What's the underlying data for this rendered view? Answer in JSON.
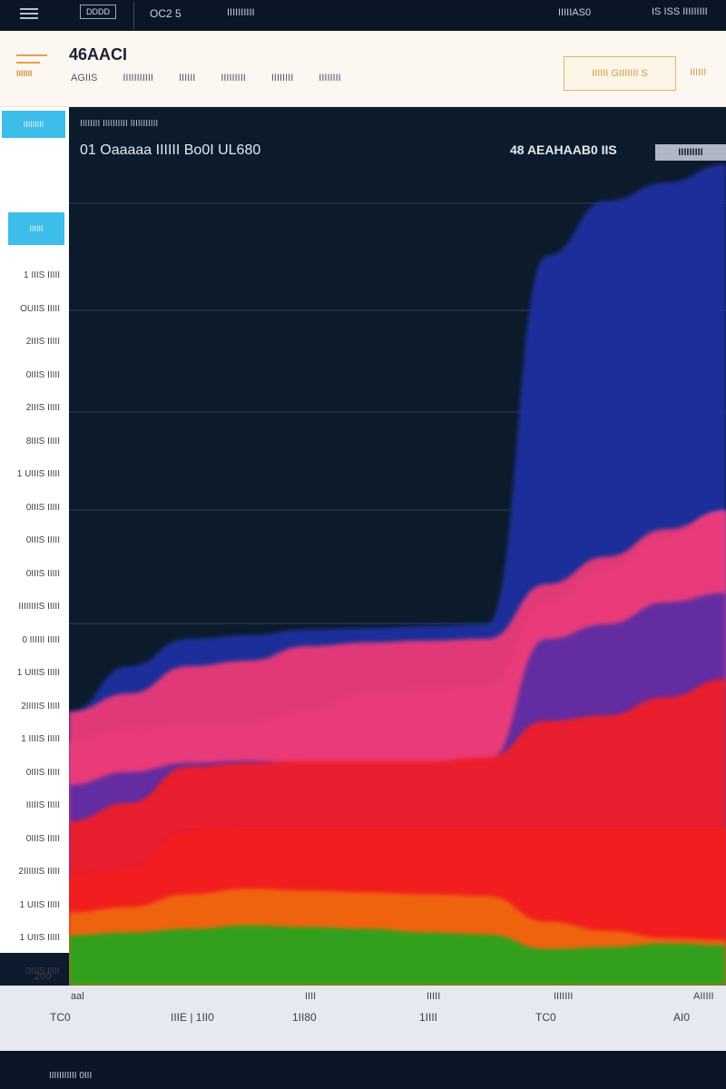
{
  "topbar": {
    "box_label": "DDDD",
    "item1": "OC2 5",
    "item2": "IIIIIIIIII",
    "item3": "IIIIIAS0",
    "item4": "IS ISS IIIIIIIII"
  },
  "header": {
    "logo_text": "IIIIIII",
    "title": "46AACI",
    "nav": [
      "AGIIS",
      "IIIIIIIIIII",
      "IIIIII",
      "IIIIIIIII",
      "IIIIIIII",
      "IIIIIIII"
    ],
    "button_label": "IIIIII GIIIIIII S",
    "button2_label": "IIIIII"
  },
  "sidebar": {
    "pill1": "IIIIIIIII",
    "pill2": "IIIIII"
  },
  "chart_data": {
    "type": "area",
    "subtitle": "IIIIIIII IIIIIIIIII IIIIIIIIIII",
    "title": "01 Oaaaaa IIIIII Bo0I UL680",
    "legend_text": "48 AEAHAAB0 IIS",
    "legend_badge": "IIIIIIIII",
    "y_tick_labels": [
      "1 IIIS IIIII",
      "OUIIS IIIII",
      "2IIIS IIIII",
      "0IIIS IIIII",
      "2IIIS IIIII",
      "8IIIS IIIII",
      "1 UIIIS IIIII",
      "0IIIS IIIII",
      "0IIIS IIIII",
      "0IIIS IIIII",
      "IIIIIIIIS IIIII",
      "0 IIIIII IIIII",
      "1 UIIIS IIIII",
      "2IIIIIS IIIII",
      "1 IIIIS IIIII",
      "0IIIS IIIII",
      "IIIIIS IIIII",
      "0IIIS IIIII",
      "2IIIIIIS IIIII",
      "1 UIIS IIIII",
      "1 UIIS IIIII",
      "0IIIS IIIII"
    ],
    "y_min_label": "200",
    "x_tick_labels": [
      "TC0",
      "IIIE | 1II0",
      "1II80",
      "1IIII",
      "TC0",
      "AI0"
    ],
    "x_minor_labels": [
      "aal",
      "IIII",
      "IIIII",
      "IIIIIII",
      "AIIIII"
    ],
    "grid": true,
    "series": [
      {
        "color": "#27a31a",
        "values": [
          55,
          58,
          62,
          66,
          64,
          62,
          58,
          56,
          40,
          42,
          46,
          44
        ]
      },
      {
        "color": "#f06712",
        "values": [
          80,
          86,
          100,
          106,
          104,
          102,
          100,
          98,
          70,
          60,
          52,
          50
        ]
      },
      {
        "color": "#f21a1e",
        "values": [
          120,
          128,
          168,
          172,
          172,
          172,
          172,
          172,
          172,
          172,
          172,
          172
        ]
      },
      {
        "color": "#f01f29",
        "values": [
          180,
          200,
          240,
          244,
          246,
          246,
          246,
          250,
          290,
          296,
          316,
          336
        ]
      },
      {
        "color": "#5d2da2",
        "values": [
          220,
          234,
          244,
          246,
          240,
          240,
          240,
          244,
          380,
          396,
          420,
          430
        ]
      },
      {
        "color": "#c25bb8",
        "values": [
          268,
          280,
          286,
          288,
          300,
          320,
          324,
          328,
          420,
          456,
          492,
          520
        ]
      },
      {
        "color": "#ec3a76",
        "values": [
          300,
          320,
          350,
          356,
          372,
          376,
          378,
          380,
          440,
          470,
          500,
          520
        ]
      },
      {
        "color": "#1c2fa0",
        "values": [
          300,
          350,
          380,
          384,
          390,
          392,
          394,
          396,
          800,
          860,
          880,
          900
        ]
      }
    ]
  },
  "bottombar": {
    "text": "IIIIIIIIIII 0III"
  }
}
